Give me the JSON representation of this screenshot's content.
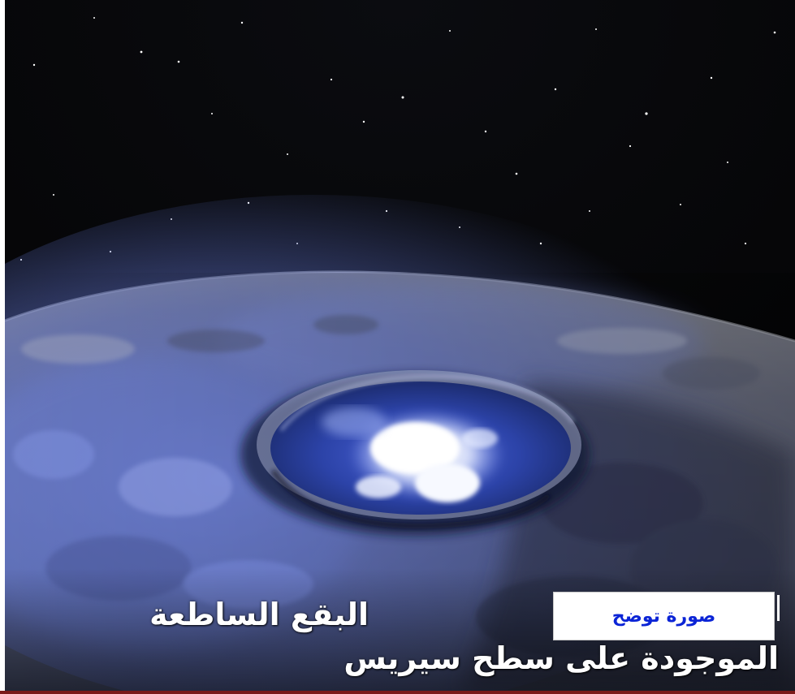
{
  "image": {
    "subject": "crater-with-bright-spots",
    "colors": {
      "space": "#050608",
      "surface_gray": "#7d7f86",
      "surface_blue": "#5a6bb8",
      "crater_blue": "#2f46b0",
      "bright_spot": "#f4f7ff",
      "bottom_rule": "#7a1a1a"
    }
  },
  "caption": {
    "line1": "البقع الساطعة",
    "line2": "الموجودة على سطح سيريس"
  },
  "label": {
    "text": "صورة توضح"
  }
}
